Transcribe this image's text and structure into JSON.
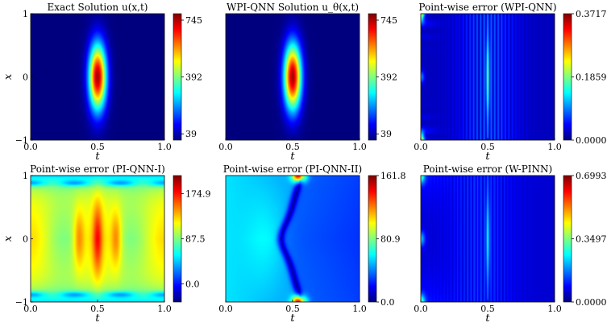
{
  "figure": {
    "colormap": [
      "#00007f",
      "#0000ff",
      "#007fff",
      "#00ffff",
      "#7fff7f",
      "#ffff00",
      "#ff7f00",
      "#ff0000",
      "#7f0000"
    ]
  },
  "chart_data": [
    {
      "type": "heatmap",
      "title": "Exact Solution u(x,t)",
      "xlabel": "t",
      "ylabel": "x",
      "xlim": [
        0.0,
        1.0
      ],
      "ylim": [
        -1,
        1
      ],
      "x_ticks": [
        "0.0",
        "0.5",
        "1.0"
      ],
      "y_ticks": [
        "1",
        "0",
        "−1"
      ],
      "colorbar_range": [
        0,
        785
      ],
      "colorbar_ticks": [
        "745",
        "392",
        "39"
      ],
      "pattern": "gaussian peak centered at t=0.5, x=0"
    },
    {
      "type": "heatmap",
      "title": "WPI-QNN Solution u_θ(x,t)",
      "xlabel": "t",
      "ylabel": "",
      "xlim": [
        0.0,
        1.0
      ],
      "ylim": [
        -1,
        1
      ],
      "x_ticks": [
        "0.0",
        "0.5",
        "1.0"
      ],
      "y_ticks": [],
      "colorbar_range": [
        0,
        785
      ],
      "colorbar_ticks": [
        "745",
        "392",
        "39"
      ],
      "pattern": "gaussian peak centered at t=0.5, x=0"
    },
    {
      "type": "heatmap",
      "title": "Point-wise error (WPI-QNN)",
      "xlabel": "t",
      "ylabel": "",
      "xlim": [
        0.0,
        1.0
      ],
      "ylim": [
        -1,
        1
      ],
      "x_ticks": [
        "0.0",
        "0.5",
        "1.0"
      ],
      "y_ticks": [],
      "colorbar_range": [
        0.0,
        0.3717
      ],
      "colorbar_ticks": [
        "0.3717",
        "0.1859",
        "0.0000"
      ],
      "pattern": "low error, vertical striations, peaks near t=0 corners and t=0.5"
    },
    {
      "type": "heatmap",
      "title": "Point-wise error (PI-QNN-I)",
      "xlabel": "t",
      "ylabel": "x",
      "xlim": [
        0.0,
        1.0
      ],
      "ylim": [
        -1,
        1
      ],
      "x_ticks": [
        "0.0",
        "0.5",
        "1.0"
      ],
      "y_ticks": [
        "1",
        "0",
        "−1"
      ],
      "colorbar_range": [
        -35,
        210
      ],
      "colorbar_ticks": [
        "174.9",
        "87.5",
        "0.0"
      ],
      "pattern": "broad high error with lobes near t=0.35, 0.5, 0.63"
    },
    {
      "type": "heatmap",
      "title": "Point-wise error (PI-QNN-II)",
      "xlabel": "t",
      "ylabel": "",
      "xlim": [
        0.0,
        1.0
      ],
      "ylim": [
        -1,
        1
      ],
      "x_ticks": [
        "0.0",
        "0.5",
        "1.0"
      ],
      "y_ticks": [],
      "colorbar_range": [
        0.0,
        161.8
      ],
      "colorbar_ticks": [
        "161.8",
        "80.9",
        "0.0"
      ],
      "pattern": "cyan left region, dark curved band near t=0.5, peaks at t=0.55 x=±1"
    },
    {
      "type": "heatmap",
      "title": "Point-wise error (W-PINN)",
      "xlabel": "t",
      "ylabel": "",
      "xlim": [
        0.0,
        1.0
      ],
      "ylim": [
        -1,
        1
      ],
      "x_ticks": [
        "0.0",
        "0.5",
        "1.0"
      ],
      "y_ticks": [],
      "colorbar_range": [
        0.0,
        0.6993
      ],
      "colorbar_ticks": [
        "0.6993",
        "0.3497",
        "0.0000"
      ],
      "pattern": "low error, vertical striations, peaks near t=0 and t=0.5"
    }
  ]
}
